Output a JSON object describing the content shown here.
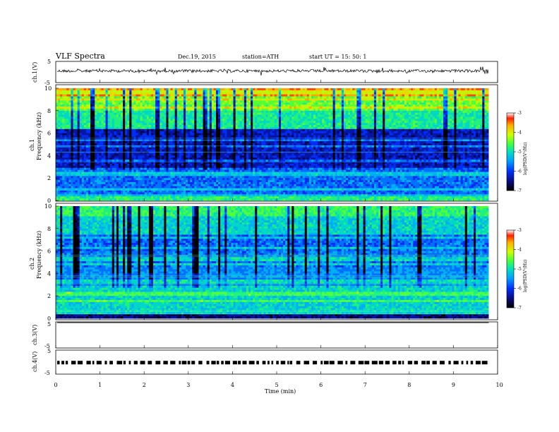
{
  "header": {
    "title": "VLF  Spectra",
    "date": "Dec.19, 2015",
    "station": "station=ATH",
    "start": "start  UT  =    15: 50: 1"
  },
  "chart_data": [
    {
      "type": "line",
      "name": "ch1-waveform",
      "ylabel": "ch.1(V)",
      "ylim": [
        -5,
        5
      ],
      "yticks": [
        "5",
        "-5"
      ],
      "baseline": 0.5
    },
    {
      "type": "heatmap",
      "name": "ch1-spectrogram",
      "ylabel_top": "ch.1",
      "ylabel": "Frequency  (kHz)",
      "ylim": [
        0,
        10
      ],
      "yticks": [
        "0",
        "2",
        "4",
        "6",
        "8",
        "10"
      ],
      "colorbar": {
        "label": "log(PSD(V²/Hz)",
        "range": [
          -7,
          -3
        ],
        "ticks": [
          "-3",
          "-4",
          "-5",
          "-6",
          "-7"
        ]
      }
    },
    {
      "type": "heatmap",
      "name": "ch2-spectrogram",
      "ylabel_top": "ch.2",
      "ylabel": "Frequency  (kHz)",
      "ylim": [
        0,
        10
      ],
      "yticks": [
        "0",
        "2",
        "4",
        "6",
        "8",
        "10"
      ],
      "colorbar": {
        "label": "log(PSD(V²/Hz)",
        "range": [
          -7,
          -3
        ],
        "ticks": [
          "-3",
          "-4",
          "-5",
          "-6",
          "-7"
        ]
      }
    },
    {
      "type": "line",
      "name": "ch3-waveform",
      "ylabel": "ch.3(V)",
      "ylim": [
        -5,
        5
      ],
      "yticks": [
        "5",
        "-5"
      ],
      "baseline": 4.7
    },
    {
      "type": "line",
      "name": "ch4-waveform",
      "ylabel": "ch.4(V)",
      "ylim": [
        -5,
        5
      ],
      "yticks": [
        "5",
        "-5"
      ],
      "baseline": -0.2
    }
  ],
  "xaxis": {
    "label": "Time  (min)",
    "range": [
      0,
      10
    ],
    "ticks": [
      "0",
      "1",
      "2",
      "3",
      "4",
      "5",
      "6",
      "7",
      "8",
      "9",
      "10"
    ],
    "data_end": 9.8
  },
  "colors": {
    "colormap": [
      "#000000",
      "#0a0a80",
      "#0030ff",
      "#00a0ff",
      "#00e0c0",
      "#40ff40",
      "#d0ff00",
      "#ffb000",
      "#ff2000",
      "#ffffff"
    ]
  }
}
